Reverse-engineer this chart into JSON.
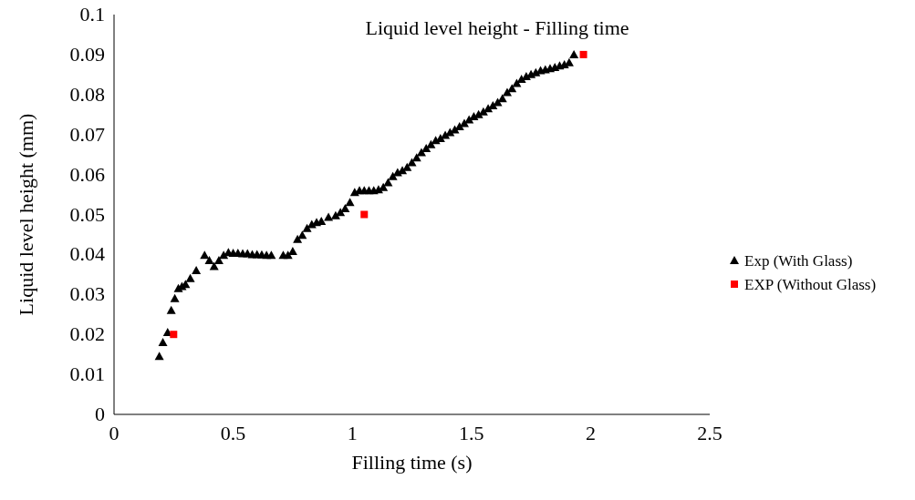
{
  "chart_data": {
    "type": "scatter",
    "title": "Liquid level height - Filling time",
    "xlabel": "Filling time (s)",
    "ylabel": "Liquid level height (mm)",
    "xlim": [
      0,
      2.5
    ],
    "xticks": [
      0,
      0.5,
      1,
      1.5,
      2,
      2.5
    ],
    "ylim": [
      0,
      0.1
    ],
    "yticks": [
      0,
      0.01,
      0.02,
      0.03,
      0.04,
      0.05,
      0.06,
      0.07,
      0.08,
      0.09,
      0.1
    ],
    "grid": false,
    "legend": "right",
    "series": [
      {
        "name": "Exp (With Glass)",
        "color": "#000000",
        "marker": "triangle",
        "x": [
          0.19,
          0.205,
          0.225,
          0.24,
          0.255,
          0.27,
          0.285,
          0.3,
          0.32,
          0.345,
          0.38,
          0.4,
          0.42,
          0.44,
          0.46,
          0.48,
          0.5,
          0.52,
          0.54,
          0.56,
          0.58,
          0.6,
          0.62,
          0.64,
          0.66,
          0.71,
          0.73,
          0.75,
          0.77,
          0.79,
          0.81,
          0.83,
          0.85,
          0.87,
          0.9,
          0.93,
          0.95,
          0.97,
          0.99,
          1.01,
          1.03,
          1.05,
          1.07,
          1.09,
          1.11,
          1.13,
          1.15,
          1.17,
          1.19,
          1.21,
          1.23,
          1.25,
          1.27,
          1.29,
          1.31,
          1.33,
          1.35,
          1.37,
          1.39,
          1.41,
          1.43,
          1.45,
          1.47,
          1.49,
          1.51,
          1.53,
          1.55,
          1.57,
          1.59,
          1.61,
          1.63,
          1.65,
          1.67,
          1.69,
          1.71,
          1.73,
          1.75,
          1.77,
          1.79,
          1.81,
          1.83,
          1.85,
          1.87,
          1.89,
          1.91,
          1.93
        ],
        "values": [
          0.0145,
          0.018,
          0.0205,
          0.026,
          0.029,
          0.0315,
          0.032,
          0.0325,
          0.034,
          0.036,
          0.0398,
          0.0385,
          0.037,
          0.0385,
          0.0398,
          0.0405,
          0.0403,
          0.0403,
          0.0402,
          0.0402,
          0.04,
          0.04,
          0.0399,
          0.0398,
          0.0398,
          0.0398,
          0.0398,
          0.0408,
          0.0438,
          0.0448,
          0.0465,
          0.0475,
          0.048,
          0.0483,
          0.0493,
          0.0497,
          0.0505,
          0.0515,
          0.053,
          0.0555,
          0.056,
          0.056,
          0.056,
          0.056,
          0.0562,
          0.0568,
          0.058,
          0.0595,
          0.0605,
          0.061,
          0.0618,
          0.063,
          0.0642,
          0.0655,
          0.0665,
          0.0675,
          0.0685,
          0.069,
          0.0698,
          0.0705,
          0.0712,
          0.072,
          0.0728,
          0.0737,
          0.0745,
          0.075,
          0.0757,
          0.0765,
          0.0772,
          0.078,
          0.079,
          0.0805,
          0.0815,
          0.0828,
          0.0838,
          0.0845,
          0.085,
          0.0855,
          0.086,
          0.0862,
          0.0865,
          0.0868,
          0.0872,
          0.0875,
          0.088,
          0.09
        ]
      },
      {
        "name": "EXP (Without Glass)",
        "color": "#ff0000",
        "marker": "square",
        "x": [
          0.25,
          1.05,
          1.97
        ],
        "values": [
          0.02,
          0.05,
          0.09
        ]
      }
    ]
  }
}
